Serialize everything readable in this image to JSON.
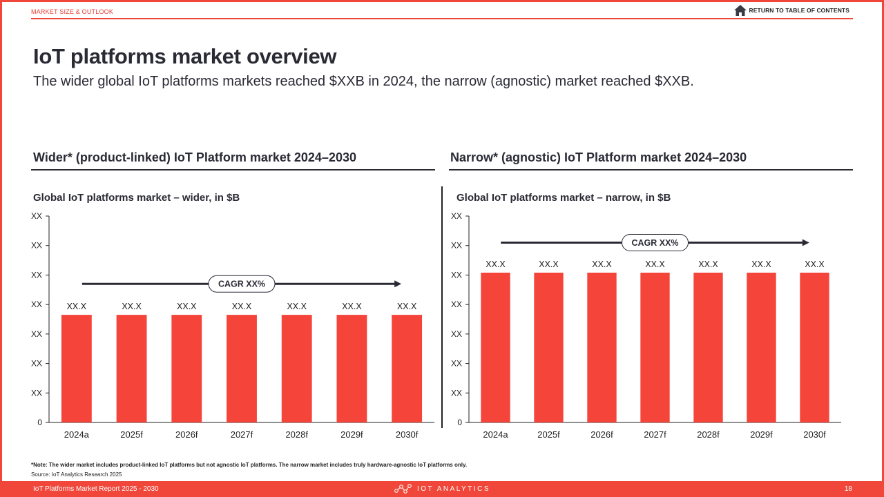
{
  "header": {
    "section_label": "MARKET SIZE & OUTLOOK",
    "toc_link": "RETURN TO TABLE OF CONTENTS",
    "home_icon": "home-icon"
  },
  "title": "IoT platforms market overview",
  "subtitle": "The wider global IoT platforms markets reached $XXB in 2024, the narrow (agnostic) market reached $XXB.",
  "left_panel": {
    "title": "Wider* (product-linked) IoT Platform market 2024–2030"
  },
  "right_panel": {
    "title": "Narrow* (agnostic) IoT Platform market 2024–2030"
  },
  "chart_data": [
    {
      "type": "bar",
      "title": "Global IoT platforms market – wider, in $B",
      "categories": [
        "2024a",
        "2025f",
        "2026f",
        "2027f",
        "2028f",
        "2029f",
        "2030f"
      ],
      "data_labels": [
        "XX.X",
        "XX.X",
        "XX.X",
        "XX.X",
        "XX.X",
        "XX.X",
        "XX.X"
      ],
      "values": [
        3.65,
        3.65,
        3.65,
        3.65,
        3.65,
        3.65,
        3.65
      ],
      "y_tick_labels": [
        "0",
        "XX",
        "XX",
        "XX",
        "XX",
        "XX",
        "XX",
        "XX"
      ],
      "ylim": [
        0,
        7
      ],
      "cagr_label": "CAGR XX%",
      "cagr_level": 4.7,
      "bar_color": "#f5443a",
      "grid": false
    },
    {
      "type": "bar",
      "title": "Global IoT platforms market – narrow, in $B",
      "categories": [
        "2024a",
        "2025f",
        "2026f",
        "2027f",
        "2028f",
        "2029f",
        "2030f"
      ],
      "data_labels": [
        "XX.X",
        "XX.X",
        "XX.X",
        "XX.X",
        "XX.X",
        "XX.X",
        "XX.X"
      ],
      "values": [
        5.08,
        5.08,
        5.08,
        5.08,
        5.08,
        5.08,
        5.08
      ],
      "y_tick_labels": [
        "0",
        "XX",
        "XX",
        "XX",
        "XX",
        "XX",
        "XX",
        "XX"
      ],
      "ylim": [
        0,
        7
      ],
      "cagr_label": "CAGR XX%",
      "cagr_level": 6.1,
      "bar_color": "#f5443a",
      "grid": false
    }
  ],
  "footnote": "*Note: The wider market includes product-linked IoT platforms but not agnostic IoT platforms. The narrow market includes truly hardware-agnostic IoT platforms only.",
  "source": "Source: IoT Analytics Research 2025",
  "footer": {
    "report_name": "IoT Platforms Market Report 2025 - 2030",
    "brand": "IOT ANALYTICS",
    "brand_icon": "iot-analytics-logo-icon",
    "page_number": "18"
  },
  "colors": {
    "accent": "#f0473a",
    "text_dark": "#2a2a35"
  }
}
